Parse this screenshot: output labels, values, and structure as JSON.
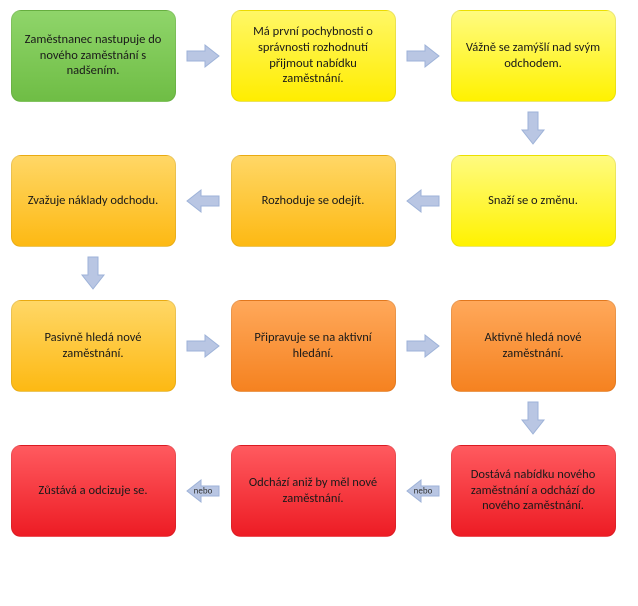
{
  "diagram": {
    "type": "flowchart",
    "background_color": "#ffffff",
    "node_border_radius": 10,
    "font_family": "Calibri",
    "font_size": 12.5,
    "text_color": "#1a1a1a",
    "arrow_fill": "#b9c6e3",
    "arrow_stroke": "#9db2d8",
    "nebo_label": "nebo",
    "nodes": [
      {
        "id": "n1",
        "row": 0,
        "col": 0,
        "fill": "#6fbd45",
        "gradient_to": "#8fd56a",
        "label": "Zaměstnanec nastupuje do nového zaměstnání s nadšením."
      },
      {
        "id": "n2",
        "row": 0,
        "col": 2,
        "fill": "#ffed00",
        "gradient_to": "#fff766",
        "label": "Má první pochybnosti o správnosti rozhodnutí přijmout nabídku zaměstnání."
      },
      {
        "id": "n3",
        "row": 0,
        "col": 4,
        "fill": "#fff200",
        "gradient_to": "#fffb80",
        "label": "Vážně se zamýšlí nad svým odchodem."
      },
      {
        "id": "n4",
        "row": 2,
        "col": 4,
        "fill": "#fff200",
        "gradient_to": "#fffb80",
        "label": "Snaží se o změnu."
      },
      {
        "id": "n5",
        "row": 2,
        "col": 2,
        "fill": "#fdb913",
        "gradient_to": "#ffd766",
        "label": "Rozhoduje se odejít."
      },
      {
        "id": "n6",
        "row": 2,
        "col": 0,
        "fill": "#fdb913",
        "gradient_to": "#ffd766",
        "label": "Zvažuje náklady odchodu."
      },
      {
        "id": "n7",
        "row": 4,
        "col": 0,
        "fill": "#fdb913",
        "gradient_to": "#ffd766",
        "label": "Pasivně hledá nové zaměstnání."
      },
      {
        "id": "n8",
        "row": 4,
        "col": 2,
        "fill": "#f58220",
        "gradient_to": "#ffa85a",
        "label": "Připravuje se na aktivní hledání."
      },
      {
        "id": "n9",
        "row": 4,
        "col": 4,
        "fill": "#f58220",
        "gradient_to": "#ffa85a",
        "label": "Aktivně hledá nové zaměstnání."
      },
      {
        "id": "n10",
        "row": 6,
        "col": 4,
        "fill": "#ed1c24",
        "gradient_to": "#ff5a5f",
        "label": "Dostává nabídku nového zaměstnání a odchází do nového zaměstnání."
      },
      {
        "id": "n11",
        "row": 6,
        "col": 2,
        "fill": "#ed1c24",
        "gradient_to": "#ff5a5f",
        "label": "Odchází aniž by měl nové zaměstnání."
      },
      {
        "id": "n12",
        "row": 6,
        "col": 0,
        "fill": "#ed1c24",
        "gradient_to": "#ff5a5f",
        "label": "Zůstává a odcizuje se."
      }
    ],
    "arrows": [
      {
        "row": 0,
        "col": 1,
        "dir": "right"
      },
      {
        "row": 0,
        "col": 3,
        "dir": "right"
      },
      {
        "row": 1,
        "col": 4,
        "dir": "down"
      },
      {
        "row": 2,
        "col": 3,
        "dir": "left"
      },
      {
        "row": 2,
        "col": 1,
        "dir": "left"
      },
      {
        "row": 3,
        "col": 0,
        "dir": "down"
      },
      {
        "row": 4,
        "col": 1,
        "dir": "right"
      },
      {
        "row": 4,
        "col": 3,
        "dir": "right"
      },
      {
        "row": 5,
        "col": 4,
        "dir": "down"
      },
      {
        "row": 6,
        "col": 3,
        "dir": "left",
        "label_key": "nebo_label"
      },
      {
        "row": 6,
        "col": 1,
        "dir": "left",
        "label_key": "nebo_label"
      }
    ]
  }
}
